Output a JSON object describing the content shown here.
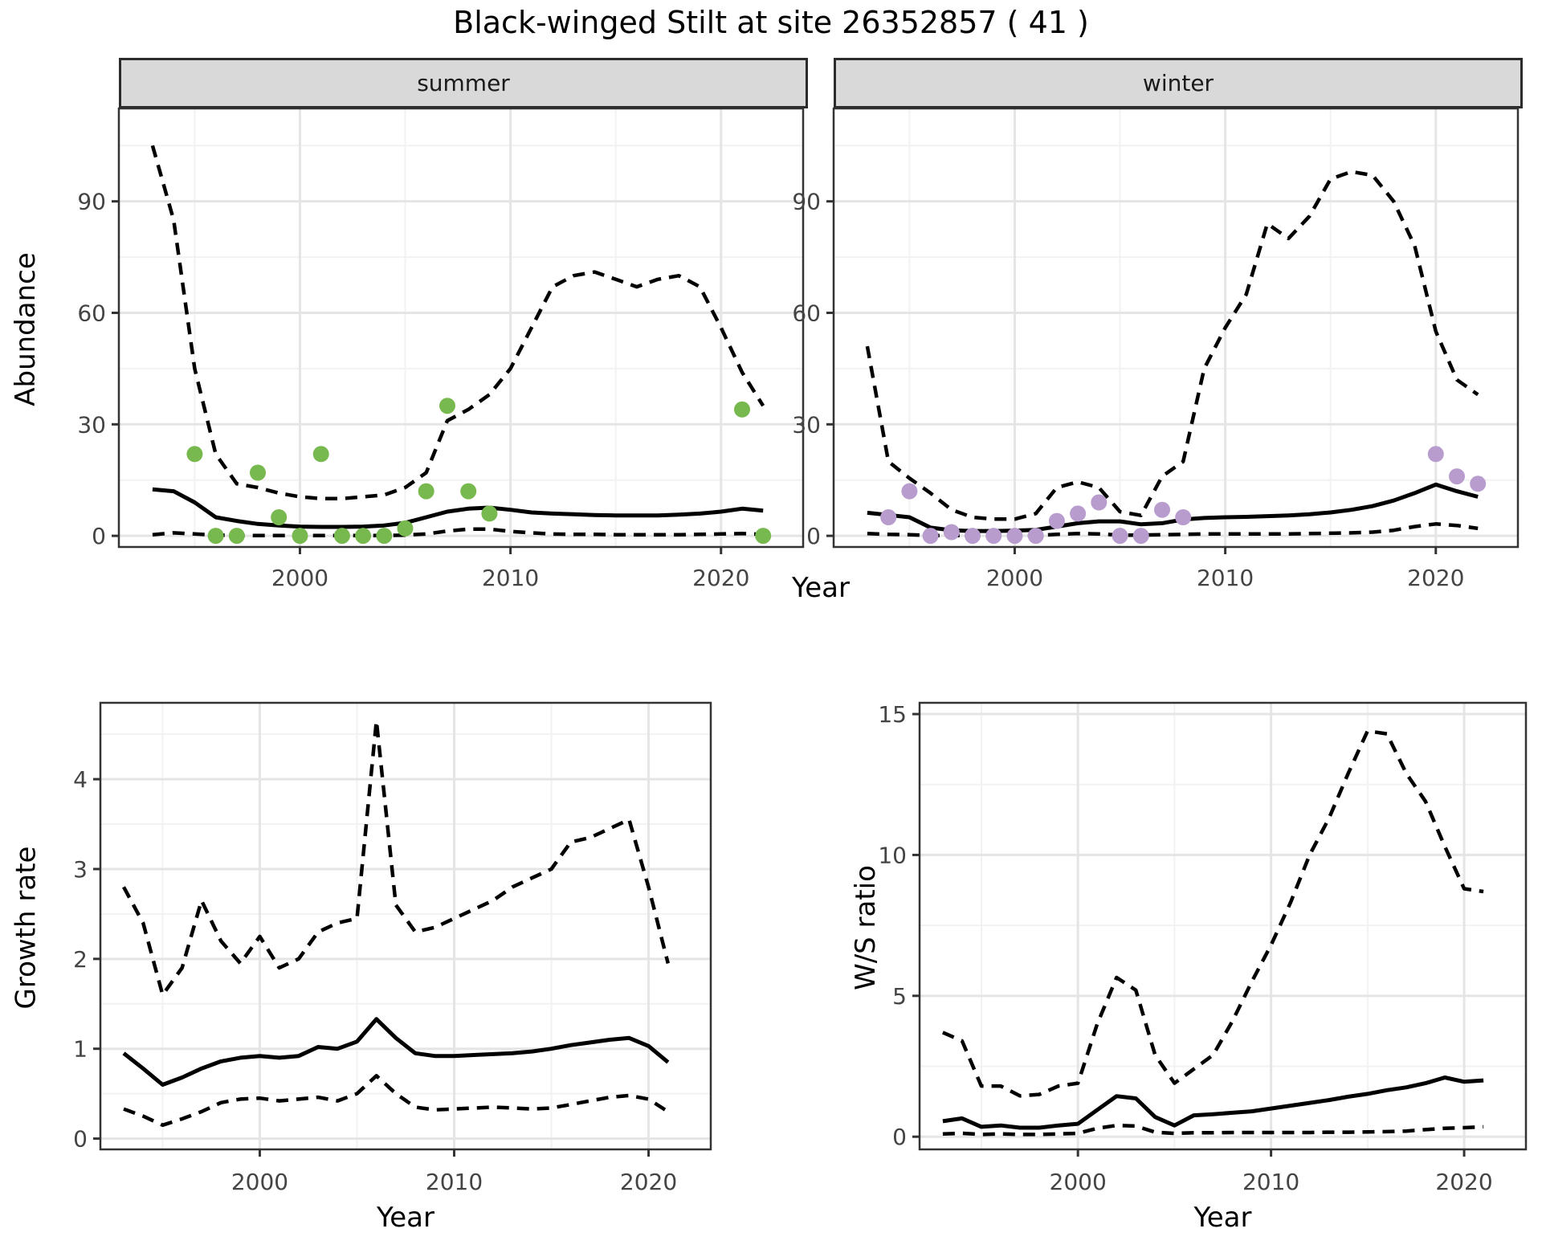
{
  "title": "Black-winged Stilt at site 26352857 ( 41 )",
  "labels": {
    "year_axis": "Year",
    "abundance_axis": "Abundance",
    "growth_axis": "Growth rate",
    "ws_axis": "W/S ratio"
  },
  "facets": {
    "summer": "summer",
    "winter": "winter"
  },
  "colors": {
    "summer_point": "#77b94e",
    "winter_point": "#b89cce",
    "line": "#000000",
    "grid_major": "#e5e5e5",
    "grid_minor": "#f2f2f2",
    "panel_border": "#333333",
    "tick_text": "#444444",
    "strip_bg": "#d9d9d9"
  },
  "chart_data": [
    {
      "id": "abundance_summer",
      "type": "line",
      "facet": "summer",
      "ylabel": "Abundance",
      "xlabel": "Year",
      "xlim": [
        1991.4,
        2023.9
      ],
      "ylim": [
        -3,
        115
      ],
      "x_ticks": [
        2000,
        2010,
        2020
      ],
      "x_minor": [
        1995,
        2005,
        2015
      ],
      "y_ticks": [
        0,
        30,
        60,
        90
      ],
      "y_minor": [
        15,
        45,
        75,
        105
      ],
      "grid": true,
      "legend": "none",
      "years": [
        1993,
        1994,
        1995,
        1996,
        1997,
        1998,
        1999,
        2000,
        2001,
        2002,
        2003,
        2004,
        2005,
        2006,
        2007,
        2008,
        2009,
        2010,
        2011,
        2012,
        2013,
        2014,
        2015,
        2016,
        2017,
        2018,
        2019,
        2020,
        2021,
        2022
      ],
      "series": [
        {
          "name": "upper_ci",
          "style": "dashed",
          "values": [
            105,
            85,
            45,
            22,
            14,
            13,
            11.5,
            10.5,
            10,
            10,
            10.5,
            11,
            13,
            17,
            31,
            34,
            38,
            45,
            56,
            67,
            70,
            71,
            69,
            67,
            69,
            70,
            67,
            56,
            44,
            35
          ]
        },
        {
          "name": "median",
          "style": "solid",
          "values": [
            12.5,
            12,
            9,
            5,
            4,
            3.2,
            2.8,
            2.5,
            2.4,
            2.4,
            2.5,
            2.8,
            3.5,
            5,
            6.5,
            7.3,
            7.6,
            7,
            6.3,
            6,
            5.8,
            5.6,
            5.5,
            5.5,
            5.5,
            5.7,
            6,
            6.5,
            7.3,
            6.8
          ]
        },
        {
          "name": "lower_ci",
          "style": "dashed",
          "values": [
            0.3,
            0.8,
            0.5,
            0.2,
            0.1,
            0.1,
            0.1,
            0.1,
            0.1,
            0.1,
            0.1,
            0.1,
            0.2,
            0.5,
            1.3,
            1.8,
            1.8,
            1.2,
            0.8,
            0.5,
            0.4,
            0.4,
            0.3,
            0.3,
            0.3,
            0.3,
            0.4,
            0.5,
            0.6,
            0.4
          ]
        }
      ],
      "points": {
        "name": "observed_counts",
        "color_key": "summer_point",
        "data": [
          [
            1995,
            22
          ],
          [
            1996,
            0
          ],
          [
            1997,
            0
          ],
          [
            1998,
            17
          ],
          [
            1999,
            5
          ],
          [
            2000,
            0
          ],
          [
            2001,
            22
          ],
          [
            2002,
            0
          ],
          [
            2003,
            0
          ],
          [
            2004,
            0
          ],
          [
            2005,
            2
          ],
          [
            2006,
            12
          ],
          [
            2007,
            35
          ],
          [
            2008,
            12
          ],
          [
            2009,
            6
          ],
          [
            2021,
            34
          ],
          [
            2022,
            0
          ]
        ]
      }
    },
    {
      "id": "abundance_winter",
      "type": "line",
      "facet": "winter",
      "ylabel": "Abundance",
      "xlabel": "Year",
      "xlim": [
        1991.4,
        2023.9
      ],
      "ylim": [
        -3,
        115
      ],
      "x_ticks": [
        2000,
        2010,
        2020
      ],
      "x_minor": [
        1995,
        2005,
        2015
      ],
      "y_ticks": [
        0,
        30,
        60,
        90
      ],
      "y_minor": [
        15,
        45,
        75,
        105
      ],
      "grid": true,
      "legend": "none",
      "years": [
        1993,
        1994,
        1995,
        1996,
        1997,
        1998,
        1999,
        2000,
        2001,
        2002,
        2003,
        2004,
        2005,
        2006,
        2007,
        2008,
        2009,
        2010,
        2011,
        2012,
        2013,
        2014,
        2015,
        2016,
        2017,
        2018,
        2019,
        2020,
        2021,
        2022
      ],
      "series": [
        {
          "name": "upper_ci",
          "style": "dashed",
          "values": [
            51,
            20,
            15.5,
            11.5,
            7,
            5,
            4.5,
            4.5,
            6,
            13,
            14.5,
            13,
            6.5,
            5.5,
            16,
            20,
            45,
            56,
            65,
            84,
            80,
            86,
            96,
            98,
            97,
            90,
            78,
            55,
            42,
            38
          ]
        },
        {
          "name": "median",
          "style": "solid",
          "values": [
            6.2,
            5.6,
            5,
            2.2,
            1.5,
            1.3,
            1.3,
            1.4,
            1.6,
            2.5,
            3.4,
            3.9,
            3.9,
            3.1,
            3.4,
            4.4,
            4.8,
            5,
            5.1,
            5.3,
            5.5,
            5.8,
            6.3,
            7,
            8,
            9.5,
            11.5,
            13.8,
            12,
            10.5
          ]
        },
        {
          "name": "lower_ci",
          "style": "dashed",
          "values": [
            0.6,
            0.4,
            0.3,
            0.1,
            0.1,
            0.1,
            0.1,
            0.1,
            0.1,
            0.4,
            0.6,
            0.5,
            0.2,
            0.2,
            0.3,
            0.4,
            0.5,
            0.5,
            0.5,
            0.5,
            0.5,
            0.6,
            0.7,
            0.8,
            1.0,
            1.5,
            2.5,
            3.2,
            2.8,
            2.0
          ]
        }
      ],
      "points": {
        "name": "observed_counts",
        "color_key": "winter_point",
        "data": [
          [
            1994,
            5
          ],
          [
            1995,
            12
          ],
          [
            1996,
            0
          ],
          [
            1997,
            1
          ],
          [
            1998,
            0
          ],
          [
            1999,
            0
          ],
          [
            2000,
            0
          ],
          [
            2001,
            0
          ],
          [
            2002,
            4
          ],
          [
            2003,
            6
          ],
          [
            2004,
            9
          ],
          [
            2005,
            0
          ],
          [
            2006,
            0
          ],
          [
            2007,
            7
          ],
          [
            2008,
            5
          ],
          [
            2020,
            22
          ],
          [
            2021,
            16
          ],
          [
            2022,
            14
          ]
        ]
      }
    },
    {
      "id": "growth_rate",
      "type": "line",
      "ylabel": "Growth rate",
      "xlabel": "Year",
      "xlim": [
        1991.8,
        2023.2
      ],
      "ylim": [
        -0.12,
        4.85
      ],
      "x_ticks": [
        2000,
        2010,
        2020
      ],
      "x_minor": [
        1995,
        2005,
        2015
      ],
      "y_ticks": [
        0,
        1,
        2,
        3,
        4
      ],
      "y_minor": [
        0.5,
        1.5,
        2.5,
        3.5,
        4.5
      ],
      "grid": true,
      "legend": "none",
      "years": [
        1993,
        1994,
        1995,
        1996,
        1997,
        1998,
        1999,
        2000,
        2001,
        2002,
        2003,
        2004,
        2005,
        2006,
        2007,
        2008,
        2009,
        2010,
        2011,
        2012,
        2013,
        2014,
        2015,
        2016,
        2017,
        2018,
        2019,
        2020,
        2021
      ],
      "series": [
        {
          "name": "upper_ci",
          "style": "dashed",
          "values": [
            2.8,
            2.4,
            1.6,
            1.9,
            2.65,
            2.2,
            1.95,
            2.25,
            1.9,
            2.0,
            2.3,
            2.4,
            2.45,
            4.65,
            2.6,
            2.3,
            2.35,
            2.45,
            2.55,
            2.65,
            2.8,
            2.9,
            3.0,
            3.3,
            3.35,
            3.45,
            3.55,
            2.8,
            1.95
          ]
        },
        {
          "name": "median",
          "style": "solid",
          "values": [
            0.95,
            0.78,
            0.6,
            0.68,
            0.78,
            0.86,
            0.9,
            0.92,
            0.9,
            0.92,
            1.02,
            1.0,
            1.08,
            1.33,
            1.12,
            0.95,
            0.92,
            0.92,
            0.93,
            0.94,
            0.95,
            0.97,
            1.0,
            1.04,
            1.07,
            1.1,
            1.12,
            1.03,
            0.85
          ]
        },
        {
          "name": "lower_ci",
          "style": "dashed",
          "values": [
            0.33,
            0.25,
            0.15,
            0.22,
            0.3,
            0.4,
            0.44,
            0.45,
            0.42,
            0.44,
            0.46,
            0.42,
            0.5,
            0.7,
            0.5,
            0.35,
            0.32,
            0.33,
            0.34,
            0.35,
            0.34,
            0.33,
            0.34,
            0.38,
            0.42,
            0.46,
            0.48,
            0.44,
            0.3
          ]
        }
      ],
      "points": null
    },
    {
      "id": "ws_ratio",
      "type": "line",
      "ylabel": "W/S ratio",
      "xlabel": "Year",
      "xlim": [
        1991.8,
        2023.2
      ],
      "ylim": [
        -0.45,
        15.4
      ],
      "x_ticks": [
        2000,
        2010,
        2020
      ],
      "x_minor": [
        1995,
        2005,
        2015
      ],
      "y_ticks": [
        0,
        5,
        10,
        15
      ],
      "y_minor": [
        2.5,
        7.5,
        12.5
      ],
      "grid": true,
      "legend": "none",
      "years": [
        1993,
        1994,
        1995,
        1996,
        1997,
        1998,
        1999,
        2000,
        2001,
        2002,
        2003,
        2004,
        2005,
        2006,
        2007,
        2008,
        2009,
        2010,
        2011,
        2012,
        2013,
        2014,
        2015,
        2016,
        2017,
        2018,
        2019,
        2020,
        2021
      ],
      "series": [
        {
          "name": "upper_ci",
          "style": "dashed",
          "values": [
            3.7,
            3.4,
            1.8,
            1.8,
            1.45,
            1.5,
            1.8,
            1.9,
            4.0,
            5.65,
            5.2,
            2.9,
            1.9,
            2.4,
            2.9,
            4.1,
            5.5,
            6.8,
            8.3,
            10.0,
            11.3,
            12.9,
            14.4,
            14.3,
            12.9,
            11.9,
            10.3,
            8.8,
            8.7
          ]
        },
        {
          "name": "median",
          "style": "solid",
          "values": [
            0.55,
            0.65,
            0.35,
            0.4,
            0.32,
            0.32,
            0.4,
            0.46,
            0.95,
            1.44,
            1.36,
            0.7,
            0.4,
            0.76,
            0.8,
            0.85,
            0.9,
            1.0,
            1.1,
            1.2,
            1.3,
            1.42,
            1.52,
            1.65,
            1.75,
            1.9,
            2.1,
            1.95,
            2.0
          ]
        },
        {
          "name": "lower_ci",
          "style": "dashed",
          "values": [
            0.1,
            0.12,
            0.08,
            0.1,
            0.08,
            0.08,
            0.1,
            0.12,
            0.3,
            0.4,
            0.38,
            0.16,
            0.12,
            0.14,
            0.14,
            0.15,
            0.15,
            0.15,
            0.15,
            0.15,
            0.16,
            0.16,
            0.17,
            0.18,
            0.2,
            0.25,
            0.3,
            0.32,
            0.35
          ]
        }
      ],
      "points": null
    }
  ]
}
